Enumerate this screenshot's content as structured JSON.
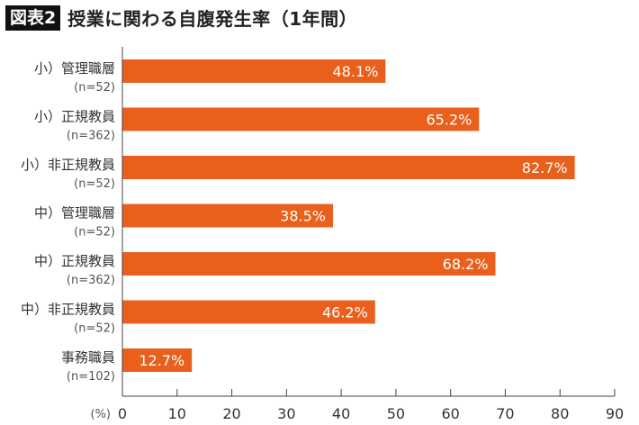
{
  "header": {
    "badge": "図表2",
    "title": "授業に関わる自腹発生率（1年間）"
  },
  "chart_data": {
    "type": "bar",
    "orientation": "horizontal",
    "categories": [
      "小）管理職層",
      "小）正規教員",
      "小）非正規教員",
      "中）管理職層",
      "中）正規教員",
      "中）非正規教員",
      "事務職員"
    ],
    "sample_sizes": [
      "(n=52)",
      "(n=362)",
      "(n=52)",
      "(n=52)",
      "(n=362)",
      "(n=52)",
      "(n=102)"
    ],
    "values": [
      48.1,
      65.2,
      82.7,
      38.5,
      68.2,
      46.2,
      12.7
    ],
    "data_labels": [
      "48.1%",
      "65.2%",
      "82.7%",
      "38.5%",
      "68.2%",
      "46.2%",
      "12.7%"
    ],
    "xlabel": "(%)",
    "xlim": [
      0,
      90
    ],
    "xticks": [
      "0",
      "10",
      "20",
      "30",
      "40",
      "50",
      "60",
      "70",
      "80",
      "90"
    ],
    "grid": false,
    "bar_color": "#e8601c"
  }
}
